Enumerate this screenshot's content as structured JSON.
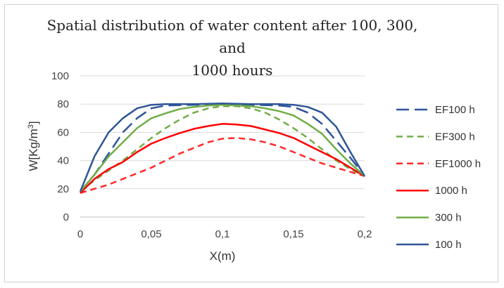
{
  "chart_data": {
    "type": "line",
    "title": "Spatial distribution  of water content after 100, 300, and 1000 hours",
    "title_lines": [
      "Spatial distribution  of water content after 100, 300, and",
      "1000 hours"
    ],
    "xlabel": "X(m)",
    "ylabel_main": "W[Kg/m",
    "ylabel_sup": "3",
    "ylabel_close": "]",
    "xlim": [
      0,
      0.2
    ],
    "ylim": [
      0,
      100
    ],
    "xticks": [
      0,
      0.05,
      0.1,
      0.15,
      0.2
    ],
    "xtick_labels": [
      "0",
      "0,05",
      "0,1",
      "0,15",
      "0,2"
    ],
    "yticks": [
      0,
      20,
      40,
      60,
      80,
      100
    ],
    "ytick_labels": [
      "0",
      "20",
      "40",
      "60",
      "80",
      "100"
    ],
    "grid": true,
    "legend_position": "right",
    "series": [
      {
        "name": "EF100 h",
        "color": "#2f5597",
        "dash": "long",
        "x": [
          0,
          0.01,
          0.02,
          0.03,
          0.04,
          0.05,
          0.06,
          0.08,
          0.1,
          0.12,
          0.14,
          0.15,
          0.16,
          0.17,
          0.18,
          0.19,
          0.2
        ],
        "y": [
          18,
          30,
          45,
          60,
          70,
          77,
          79,
          79.5,
          80,
          79.5,
          79,
          78,
          74,
          66,
          54,
          42,
          29
        ]
      },
      {
        "name": "EF300 h",
        "color": "#70ad47",
        "dash": "medium",
        "x": [
          0,
          0.01,
          0.02,
          0.03,
          0.04,
          0.05,
          0.06,
          0.07,
          0.08,
          0.09,
          0.1,
          0.11,
          0.12,
          0.13,
          0.14,
          0.15,
          0.16,
          0.17,
          0.18,
          0.19,
          0.2
        ],
        "y": [
          18,
          26,
          33,
          40,
          48,
          56,
          63,
          69,
          74,
          77,
          78.5,
          78.5,
          77,
          74,
          69,
          63,
          56,
          48,
          40,
          34,
          29
        ]
      },
      {
        "name": "EF1000 h",
        "color": "#ff2a2a",
        "dash": "medium",
        "x": [
          0,
          0.01,
          0.02,
          0.03,
          0.04,
          0.05,
          0.06,
          0.07,
          0.08,
          0.09,
          0.1,
          0.11,
          0.12,
          0.13,
          0.14,
          0.15,
          0.16,
          0.17,
          0.18,
          0.19,
          0.2
        ],
        "y": [
          17,
          20,
          23,
          27,
          31,
          35,
          40,
          45,
          49,
          53,
          55.5,
          56,
          55,
          53,
          50,
          46,
          42,
          38,
          35,
          32,
          29
        ]
      },
      {
        "name": "1000 h",
        "color": "#ff0000",
        "dash": "solid",
        "x": [
          0,
          0.01,
          0.02,
          0.03,
          0.04,
          0.05,
          0.06,
          0.07,
          0.08,
          0.09,
          0.1,
          0.11,
          0.12,
          0.13,
          0.14,
          0.15,
          0.16,
          0.17,
          0.18,
          0.19,
          0.2
        ],
        "y": [
          17,
          27,
          34,
          39,
          46,
          52,
          56,
          59.5,
          62.5,
          64.5,
          66,
          65.5,
          64.5,
          62,
          59.5,
          56,
          51,
          46,
          41,
          35,
          29
        ]
      },
      {
        "name": "300 h",
        "color": "#70ad47",
        "dash": "solid",
        "x": [
          0,
          0.01,
          0.02,
          0.03,
          0.04,
          0.05,
          0.06,
          0.07,
          0.08,
          0.09,
          0.1,
          0.11,
          0.12,
          0.13,
          0.14,
          0.15,
          0.16,
          0.17,
          0.18,
          0.19,
          0.2
        ],
        "y": [
          18,
          30,
          43,
          53,
          63,
          70,
          73.5,
          76.5,
          78,
          79,
          79.5,
          79,
          78.5,
          77,
          75,
          72,
          66,
          59,
          48,
          38,
          29
        ]
      },
      {
        "name": "100 h",
        "color": "#2f5597",
        "dash": "solid",
        "x": [
          0,
          0.01,
          0.02,
          0.03,
          0.04,
          0.05,
          0.06,
          0.08,
          0.1,
          0.12,
          0.14,
          0.15,
          0.16,
          0.17,
          0.18,
          0.19,
          0.2
        ],
        "y": [
          18,
          43,
          60,
          70,
          77,
          79.5,
          80,
          80,
          80.5,
          80,
          80,
          79.5,
          78,
          74,
          64,
          46,
          29
        ]
      }
    ]
  }
}
